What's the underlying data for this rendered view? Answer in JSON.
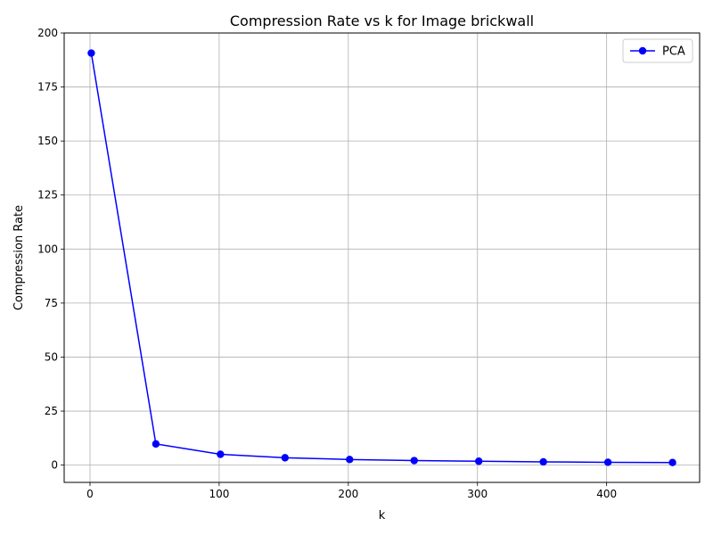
{
  "chart_data": {
    "type": "line",
    "title": "Compression Rate vs k for Image brickwall",
    "xlabel": "k",
    "ylabel": "Compression Rate",
    "xlim": [
      -20,
      472
    ],
    "ylim": [
      -8,
      200
    ],
    "xticks": [
      0,
      100,
      200,
      300,
      400
    ],
    "yticks": [
      0,
      25,
      50,
      75,
      100,
      125,
      150,
      175,
      200
    ],
    "grid": true,
    "legend_position": "top-right",
    "series": [
      {
        "name": "PCA",
        "color": "#0000ff",
        "marker": "circle",
        "x": [
          1,
          51,
          101,
          151,
          201,
          251,
          301,
          351,
          401,
          451
        ],
        "y": [
          190.7,
          9.8,
          5.0,
          3.4,
          2.6,
          2.1,
          1.8,
          1.5,
          1.3,
          1.2
        ]
      }
    ]
  }
}
